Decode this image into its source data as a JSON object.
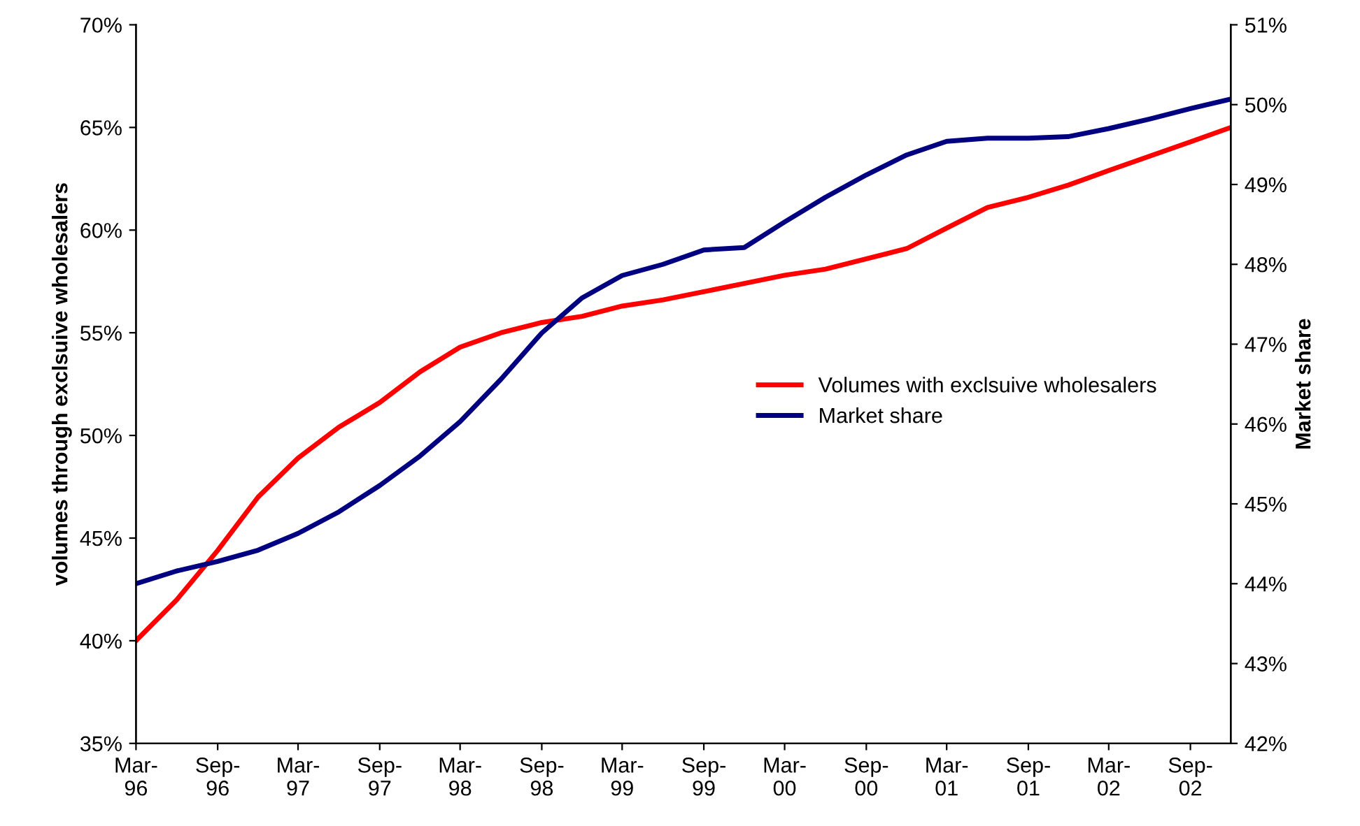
{
  "chart_data": {
    "type": "line",
    "ylabel": "volumes through exclsuive wholesalers",
    "y2label": "Market share",
    "x": [
      "1996-03",
      "1996-06",
      "1996-09",
      "1996-12",
      "1997-03",
      "1997-06",
      "1997-09",
      "1997-12",
      "1998-03",
      "1998-06",
      "1998-09",
      "1998-12",
      "1999-03",
      "1999-06",
      "1999-09",
      "1999-12",
      "2000-03",
      "2000-06",
      "2000-09",
      "2000-12",
      "2001-03",
      "2001-06",
      "2001-09",
      "2001-12",
      "2002-03",
      "2002-06",
      "2002-09",
      "2002-12"
    ],
    "series": [
      {
        "name": "Volumes with exclsuive wholesalers",
        "color": "#ff0000",
        "values": [
          40.0,
          42.0,
          44.4,
          47.0,
          48.9,
          50.4,
          51.6,
          53.1,
          54.3,
          55.0,
          55.5,
          55.8,
          56.3,
          56.6,
          57.0,
          57.4,
          57.8,
          58.1,
          58.6,
          59.1,
          60.1,
          61.1,
          61.6,
          62.2,
          62.9,
          63.6,
          64.3,
          65.0
        ]
      },
      {
        "name": "Market share",
        "color": "#000080",
        "axis": "y2",
        "values": [
          44.0,
          44.16,
          44.28,
          44.42,
          44.63,
          44.9,
          45.23,
          45.6,
          46.03,
          46.56,
          47.14,
          47.58,
          47.86,
          48.0,
          48.18,
          48.21,
          48.53,
          48.84,
          49.12,
          49.37,
          49.54,
          49.58,
          49.58,
          49.6,
          49.7,
          49.82,
          49.95,
          50.07
        ]
      }
    ],
    "xlim": [
      "1996-03",
      "2002-12"
    ],
    "xticks": [
      {
        "value": "1996-03",
        "label": "Mar-\n96"
      },
      {
        "value": "1996-09",
        "label": "Sep-\n96"
      },
      {
        "value": "1997-03",
        "label": "Mar-\n97"
      },
      {
        "value": "1997-09",
        "label": "Sep-\n97"
      },
      {
        "value": "1998-03",
        "label": "Mar-\n98"
      },
      {
        "value": "1998-09",
        "label": "Sep-\n98"
      },
      {
        "value": "1999-03",
        "label": "Mar-\n99"
      },
      {
        "value": "1999-09",
        "label": "Sep-\n99"
      },
      {
        "value": "2000-03",
        "label": "Mar-\n00"
      },
      {
        "value": "2000-09",
        "label": "Sep-\n00"
      },
      {
        "value": "2001-03",
        "label": "Mar-\n01"
      },
      {
        "value": "2001-09",
        "label": "Sep-\n01"
      },
      {
        "value": "2002-03",
        "label": "Mar-\n02"
      },
      {
        "value": "2002-09",
        "label": "Sep-\n02"
      }
    ],
    "ylim": [
      35,
      70
    ],
    "yticks": [
      {
        "value": 35,
        "label": "35%"
      },
      {
        "value": 40,
        "label": "40%"
      },
      {
        "value": 45,
        "label": "45%"
      },
      {
        "value": 50,
        "label": "50%"
      },
      {
        "value": 55,
        "label": "55%"
      },
      {
        "value": 60,
        "label": "60%"
      },
      {
        "value": 65,
        "label": "65%"
      },
      {
        "value": 70,
        "label": "70%"
      }
    ],
    "y2lim": [
      42,
      51
    ],
    "y2ticks": [
      {
        "value": 42,
        "label": "42%"
      },
      {
        "value": 43,
        "label": "43%"
      },
      {
        "value": 44,
        "label": "44%"
      },
      {
        "value": 45,
        "label": "45%"
      },
      {
        "value": 46,
        "label": "46%"
      },
      {
        "value": 47,
        "label": "47%"
      },
      {
        "value": 48,
        "label": "48%"
      },
      {
        "value": 49,
        "label": "49%"
      },
      {
        "value": 50,
        "label": "50%"
      },
      {
        "value": 51,
        "label": "51%"
      }
    ],
    "legend": "center right",
    "grid": false,
    "marker": "none",
    "line_style": "solid"
  }
}
